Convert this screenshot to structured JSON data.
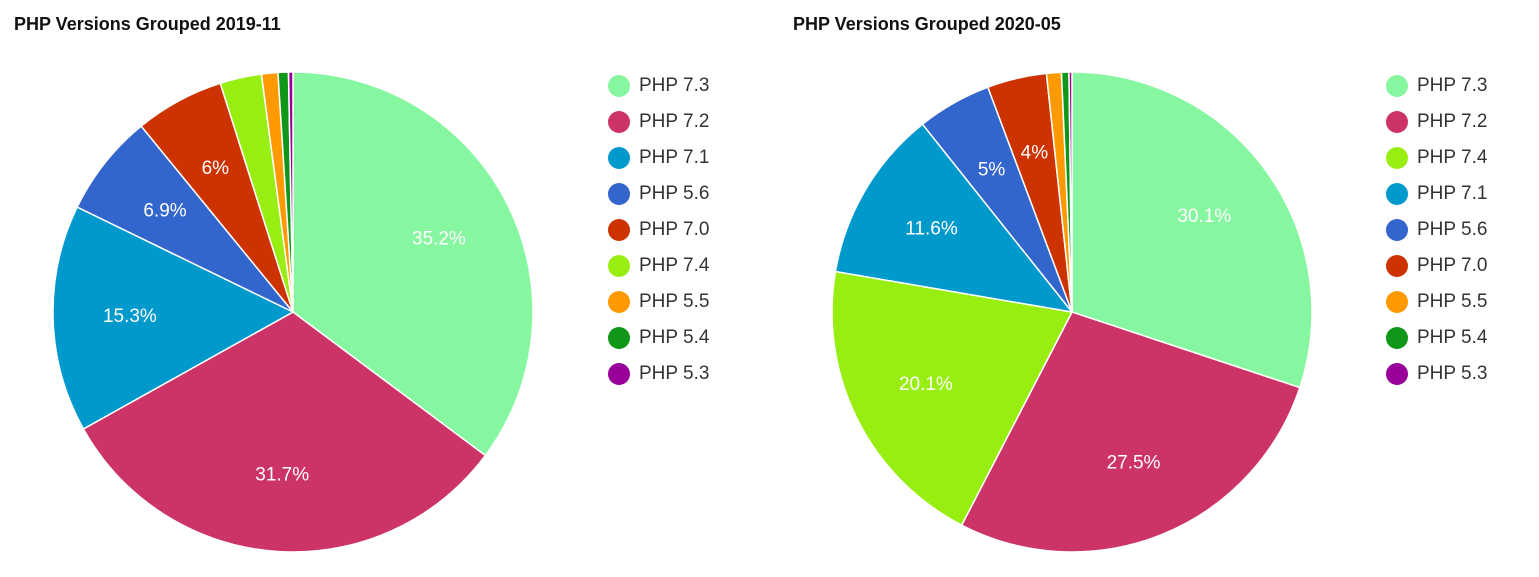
{
  "chart_data": [
    {
      "type": "pie",
      "title": "PHP Versions Grouped 2019-11",
      "legend_position": "right",
      "series": [
        {
          "name": "PHP 7.3",
          "value": 35.2,
          "label": "35.2%",
          "color": "#86f7a0"
        },
        {
          "name": "PHP 7.2",
          "value": 31.7,
          "label": "31.7%",
          "color": "#cc3366"
        },
        {
          "name": "PHP 7.1",
          "value": 15.3,
          "label": "15.3%",
          "color": "#0099cc"
        },
        {
          "name": "PHP 5.6",
          "value": 6.9,
          "label": "6.9%",
          "color": "#3366cc"
        },
        {
          "name": "PHP 7.0",
          "value": 6.0,
          "label": "6%",
          "color": "#cc3300"
        },
        {
          "name": "PHP 7.4",
          "value": 2.8,
          "label": "",
          "color": "#99ee11"
        },
        {
          "name": "PHP 5.5",
          "value": 1.1,
          "label": "",
          "color": "#ff9900"
        },
        {
          "name": "PHP 5.4",
          "value": 0.7,
          "label": "",
          "color": "#109618"
        },
        {
          "name": "PHP 5.3",
          "value": 0.3,
          "label": "",
          "color": "#990099"
        }
      ],
      "slice_order": [
        "PHP 7.3",
        "PHP 7.2",
        "PHP 7.1",
        "PHP 5.6",
        "PHP 7.0",
        "PHP 7.4",
        "PHP 5.5",
        "PHP 5.4",
        "PHP 5.3"
      ]
    },
    {
      "type": "pie",
      "title": "PHP Versions Grouped 2020-05",
      "legend_position": "right",
      "series": [
        {
          "name": "PHP 7.3",
          "value": 30.1,
          "label": "30.1%",
          "color": "#86f7a0"
        },
        {
          "name": "PHP 7.2",
          "value": 27.5,
          "label": "27.5%",
          "color": "#cc3366"
        },
        {
          "name": "PHP 7.4",
          "value": 20.1,
          "label": "20.1%",
          "color": "#99ee11"
        },
        {
          "name": "PHP 7.1",
          "value": 11.6,
          "label": "11.6%",
          "color": "#0099cc"
        },
        {
          "name": "PHP 5.6",
          "value": 5.0,
          "label": "5%",
          "color": "#3366cc"
        },
        {
          "name": "PHP 7.0",
          "value": 4.0,
          "label": "4%",
          "color": "#cc3300"
        },
        {
          "name": "PHP 5.5",
          "value": 1.0,
          "label": "",
          "color": "#ff9900"
        },
        {
          "name": "PHP 5.4",
          "value": 0.5,
          "label": "",
          "color": "#109618"
        },
        {
          "name": "PHP 5.3",
          "value": 0.2,
          "label": "",
          "color": "#990099"
        }
      ],
      "slice_order": [
        "PHP 7.3",
        "PHP 7.2",
        "PHP 7.4",
        "PHP 7.1",
        "PHP 5.6",
        "PHP 7.0",
        "PHP 5.5",
        "PHP 5.4",
        "PHP 5.3"
      ]
    }
  ]
}
